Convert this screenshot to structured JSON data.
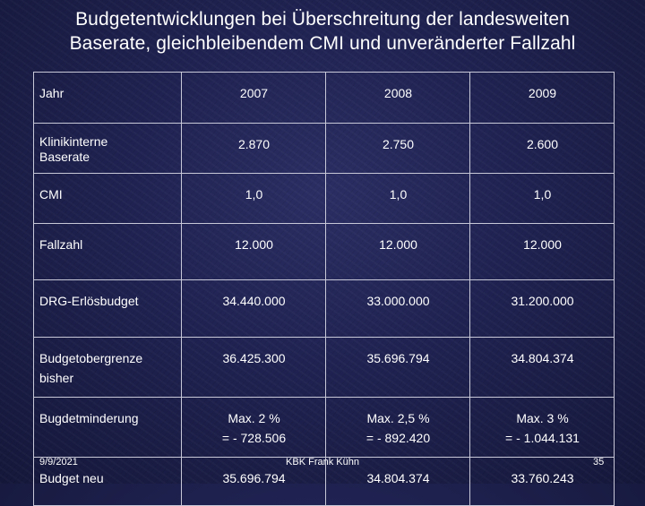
{
  "title": {
    "line1": "Budgetentwicklungen bei Überschreitung der landesweiten",
    "line2": "Baserate, gleichbleibendem CMI und unveränderter Fallzahl"
  },
  "table": {
    "header": {
      "label": "Jahr",
      "years": [
        "2007",
        "2008",
        "2009"
      ]
    },
    "rows": [
      {
        "label": [
          "Klinikinterne",
          "Baserate"
        ],
        "values": [
          [
            "2.870"
          ],
          [
            "2.750"
          ],
          [
            "2.600"
          ]
        ]
      },
      {
        "label": [
          "CMI"
        ],
        "values": [
          [
            "1,0"
          ],
          [
            "1,0"
          ],
          [
            "1,0"
          ]
        ]
      },
      {
        "label": [
          "Fallzahl"
        ],
        "values": [
          [
            "12.000"
          ],
          [
            "12.000"
          ],
          [
            "12.000"
          ]
        ]
      },
      {
        "label": [
          "DRG-Erlösbudget"
        ],
        "values": [
          [
            "34.440.000"
          ],
          [
            "33.000.000"
          ],
          [
            "31.200.000"
          ]
        ]
      },
      {
        "label": [
          "Budgetobergrenze",
          "bisher"
        ],
        "values": [
          [
            "36.425.300"
          ],
          [
            "35.696.794"
          ],
          [
            "34.804.374"
          ]
        ]
      },
      {
        "label": [
          "Bugdetminderung"
        ],
        "values": [
          [
            "Max. 2 %",
            "= - 728.506"
          ],
          [
            "Max. 2,5 %",
            "= - 892.420"
          ],
          [
            "Max. 3 %",
            "= - 1.044.131"
          ]
        ]
      },
      {
        "label": [
          "Budget neu"
        ],
        "values": [
          [
            "35.696.794"
          ],
          [
            "34.804.374"
          ],
          [
            "33.760.243"
          ]
        ]
      }
    ]
  },
  "footer": {
    "date": "9/9/2021",
    "center": "KBK Frank Kühn",
    "page": "35"
  }
}
